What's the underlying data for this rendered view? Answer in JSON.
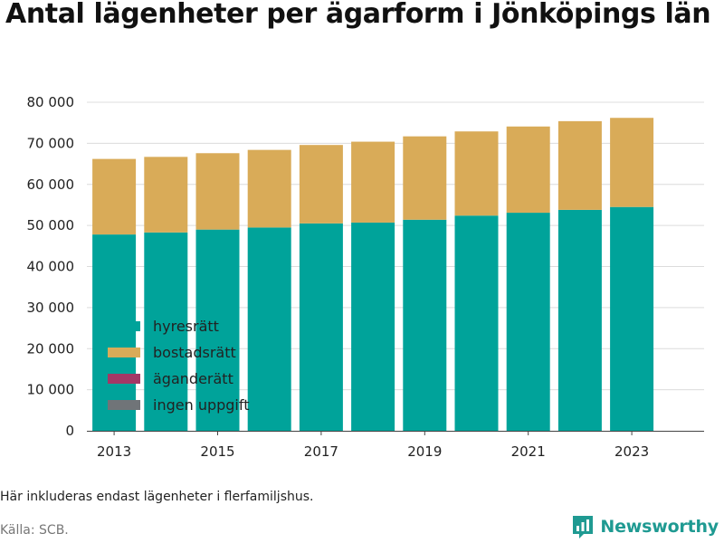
{
  "title": "Antal lägenheter per ägarform i Jönköpings län",
  "note": "Här inkluderas endast lägenheter i flerfamiljshus.",
  "source": "Källa: SCB.",
  "brand": {
    "name": "Newsworthy",
    "icon": "newsworthy-logo-icon",
    "color": "#1f9a92"
  },
  "chart_data": {
    "type": "bar",
    "stacked": true,
    "title": "Antal lägenheter per ägarform i Jönköpings län",
    "xlabel": "",
    "ylabel": "",
    "categories": [
      2013,
      2014,
      2015,
      2016,
      2017,
      2018,
      2019,
      2020,
      2021,
      2022,
      2023
    ],
    "x_tick_labels": [
      "2013",
      "2015",
      "2017",
      "2019",
      "2021",
      "2023"
    ],
    "y_tick_labels": [
      "0",
      "10 000",
      "20 000",
      "30 000",
      "40 000",
      "50 000",
      "60 000",
      "70 000",
      "80 000"
    ],
    "ylim": [
      0,
      80000
    ],
    "grid": true,
    "legend_position": "bottom-left",
    "series": [
      {
        "name": "hyresrätt",
        "color": "#00a39a",
        "values": [
          47800,
          48300,
          49000,
          49500,
          50500,
          50700,
          51400,
          52400,
          53100,
          53800,
          54500
        ]
      },
      {
        "name": "bostadsrätt",
        "color": "#d9ab58",
        "values": [
          18400,
          18400,
          18600,
          18900,
          19100,
          19700,
          20300,
          20500,
          21000,
          21600,
          21700
        ]
      },
      {
        "name": "äganderätt",
        "color": "#a33866",
        "values": [
          0,
          0,
          0,
          0,
          0,
          0,
          0,
          0,
          0,
          0,
          0
        ]
      },
      {
        "name": "ingen uppgift",
        "color": "#707478",
        "values": [
          0,
          0,
          0,
          0,
          0,
          0,
          0,
          0,
          0,
          0,
          0
        ]
      }
    ]
  }
}
